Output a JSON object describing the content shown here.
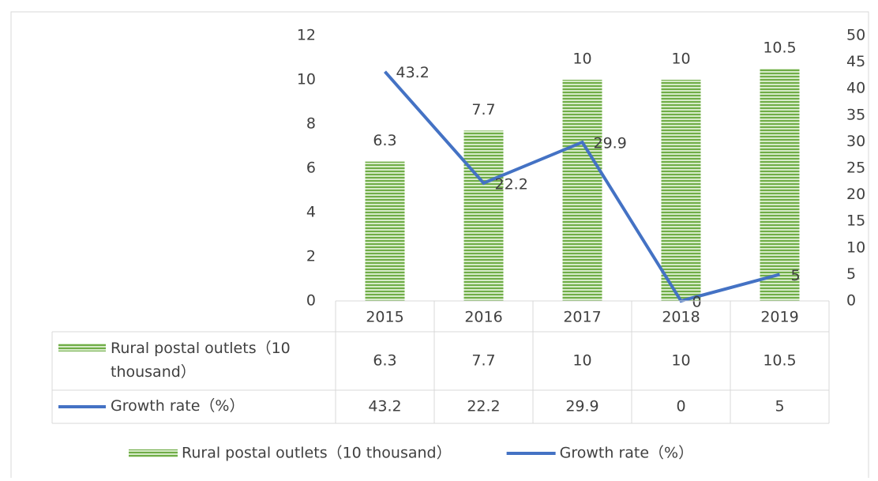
{
  "chart_data": {
    "type": "bar",
    "categories": [
      "2015",
      "2016",
      "2017",
      "2018",
      "2019"
    ],
    "series": [
      {
        "name": "Rural postal outlets（10 thousand）",
        "type": "bar",
        "color": "#70ad47",
        "values": [
          6.3,
          7.7,
          10,
          10,
          10.5
        ]
      },
      {
        "name": "Growth rate（%）",
        "type": "line",
        "color": "#4472c4",
        "axis": "y2",
        "values": [
          43.2,
          22.2,
          29.9,
          0,
          5
        ]
      }
    ],
    "ylim": [
      0,
      12
    ],
    "yticks": [
      0,
      2,
      4,
      6,
      8,
      10,
      12
    ],
    "y2lim": [
      0,
      50
    ],
    "y2ticks": [
      0,
      5,
      10,
      15,
      20,
      25,
      30,
      35,
      40,
      45,
      50
    ],
    "legend": "bottom",
    "data_table": true
  }
}
